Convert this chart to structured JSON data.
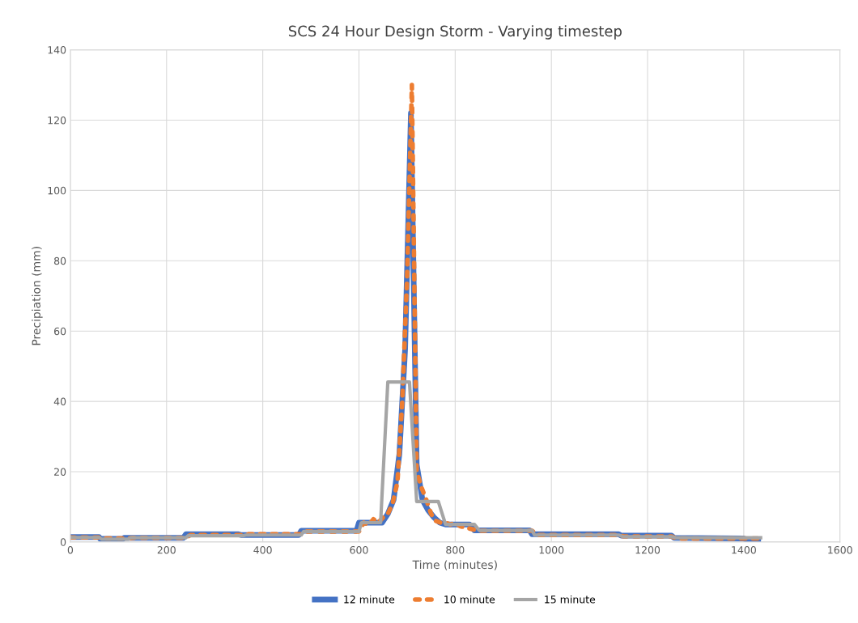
{
  "chart_data": {
    "type": "line",
    "title": "SCS 24 Hour Design Storm - Varying timestep",
    "xlabel": "Time (minutes)",
    "ylabel": "Precipiation (mm)",
    "xlim": [
      0,
      1600
    ],
    "xticks": [
      0,
      200,
      400,
      600,
      800,
      1000,
      1200,
      1400,
      1600
    ],
    "ylim": [
      0,
      140
    ],
    "yticks": [
      0,
      20,
      40,
      60,
      80,
      100,
      120,
      140
    ],
    "grid": true,
    "legend": "bottom",
    "series": [
      {
        "name": "12 minute",
        "color": "#4472c4",
        "line_style": "solid",
        "x": [
          0,
          60,
          62,
          110,
          112,
          235,
          240,
          350,
          355,
          475,
          480,
          595,
          600,
          648,
          660,
          672,
          684,
          696,
          708,
          720,
          732,
          744,
          756,
          768,
          780,
          830,
          840,
          955,
          960,
          1140,
          1145,
          1250,
          1255,
          1400,
          1410,
          1430
        ],
        "values": [
          1.4,
          1.4,
          0.9,
          0.9,
          1.2,
          1.2,
          2.2,
          2.2,
          2.0,
          2.0,
          3.2,
          3.2,
          5.5,
          5.5,
          8,
          12,
          25,
          55,
          122,
          22,
          12,
          9,
          7,
          5.5,
          5,
          5,
          3.3,
          3.3,
          2.2,
          2.2,
          1.8,
          1.8,
          1.2,
          1.0,
          0.3,
          0.3
        ]
      },
      {
        "name": "10 minute",
        "color": "#ed7d31",
        "line_style": "dotted",
        "x": [
          0,
          60,
          70,
          120,
          130,
          240,
          250,
          360,
          370,
          480,
          490,
          600,
          610,
          620,
          630,
          640,
          650,
          660,
          670,
          680,
          690,
          700,
          710,
          720,
          730,
          740,
          750,
          760,
          770,
          780,
          790,
          800,
          810,
          840,
          850,
          960,
          970,
          1140,
          1150,
          1250,
          1260,
          1430
        ],
        "values": [
          1.3,
          1.3,
          1.0,
          1.0,
          1.2,
          1.2,
          2.0,
          2.0,
          2.2,
          2.2,
          3.0,
          3.0,
          5.5,
          4.8,
          6.5,
          5.5,
          7,
          8,
          11,
          17,
          40,
          75,
          130,
          20,
          15.5,
          12,
          8,
          6,
          5.5,
          5.5,
          5,
          5.5,
          4.5,
          3.5,
          3.2,
          3.2,
          2.0,
          2.0,
          1.6,
          1.6,
          1.0,
          1.0
        ]
      },
      {
        "name": "15 minute",
        "color": "#a5a5a5",
        "line_style": "solid",
        "x": [
          0,
          60,
          65,
          120,
          125,
          240,
          245,
          360,
          365,
          480,
          485,
          600,
          605,
          645,
          660,
          705,
          720,
          765,
          780,
          840,
          850,
          960,
          965,
          1140,
          1150,
          1250,
          1260,
          1435
        ],
        "values": [
          1.3,
          1.3,
          0.8,
          0.8,
          1.2,
          1.2,
          1.8,
          1.8,
          2.0,
          2.0,
          3.0,
          3.0,
          5.5,
          5.5,
          45.5,
          45.5,
          11.5,
          11.5,
          5,
          5,
          3.3,
          3.3,
          2.0,
          2.0,
          1.5,
          1.5,
          1.2,
          1.2
        ]
      }
    ]
  }
}
